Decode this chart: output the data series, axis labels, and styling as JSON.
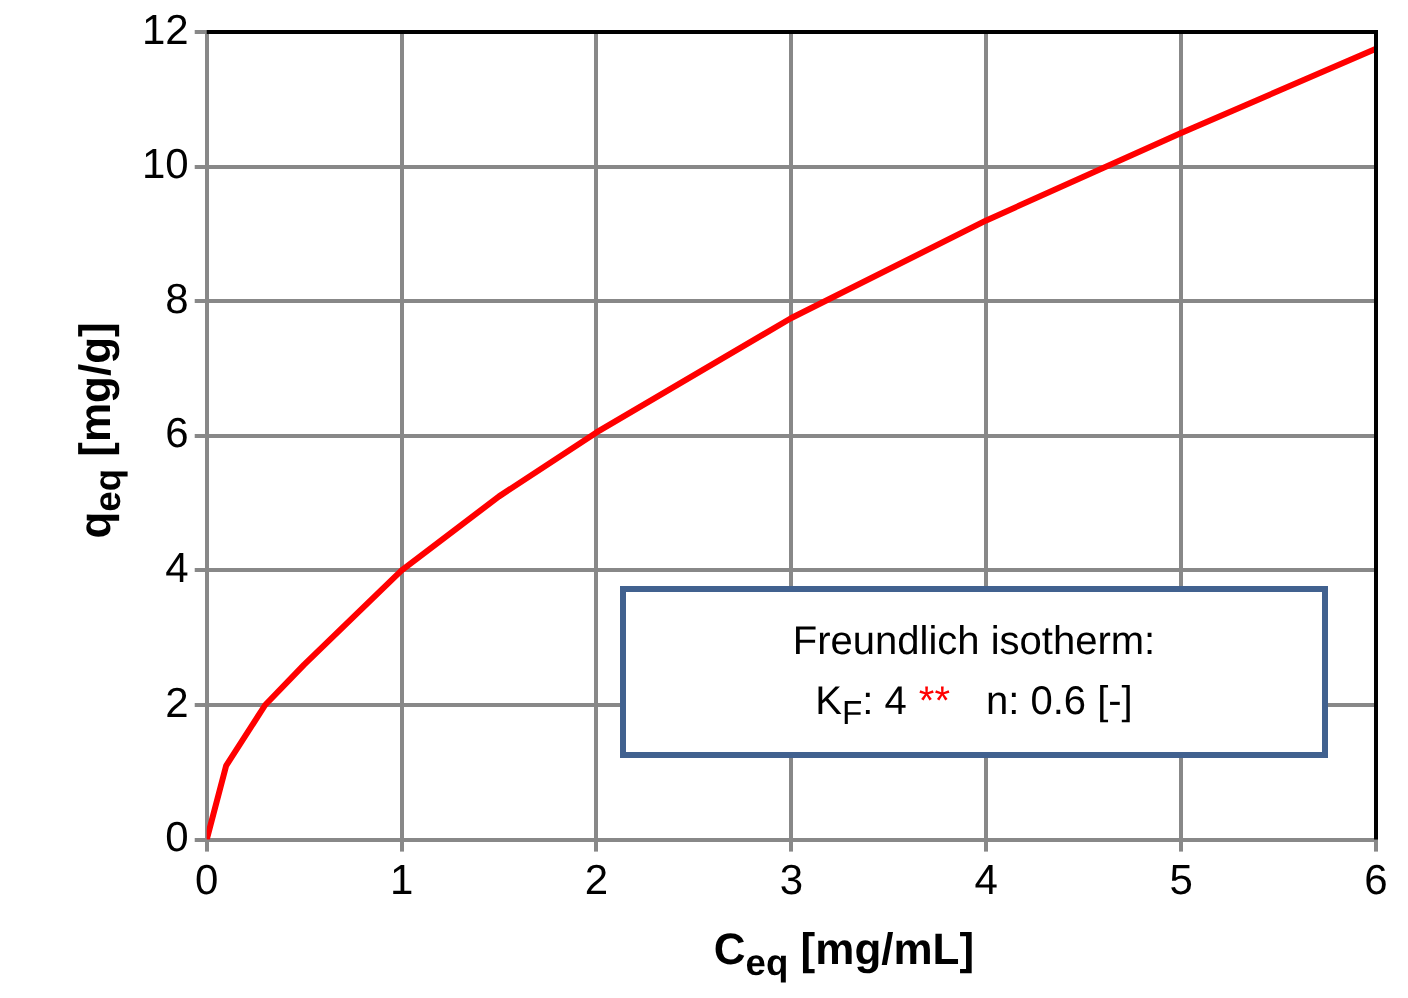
{
  "chart_data": {
    "type": "line",
    "xlabel": "C$_{eq}$  [mg/mL]",
    "ylabel": "q$_{eq}$  [mg/g]",
    "x": [
      0,
      0.1,
      0.3,
      0.5,
      1,
      1.5,
      2,
      3,
      4,
      5,
      6
    ],
    "series": [
      {
        "color": "#ff0000",
        "values": [
          0,
          1.1,
          2.0,
          2.6,
          4.0,
          5.1,
          6.05,
          7.75,
          9.2,
          10.5,
          11.75
        ]
      }
    ],
    "xlim": [
      0,
      6
    ],
    "xticks": [
      0,
      1,
      2,
      3,
      4,
      5,
      6
    ],
    "ylim": [
      0,
      12
    ],
    "yticks": [
      0,
      2,
      4,
      6,
      8,
      10,
      12
    ],
    "grid": true,
    "legend": false,
    "marker": "none",
    "line_style": "solid",
    "annotations": [
      "Freundlich isotherm:",
      "K$_{F}$: 4",
      "**",
      "n: 0.6 [-]"
    ]
  }
}
